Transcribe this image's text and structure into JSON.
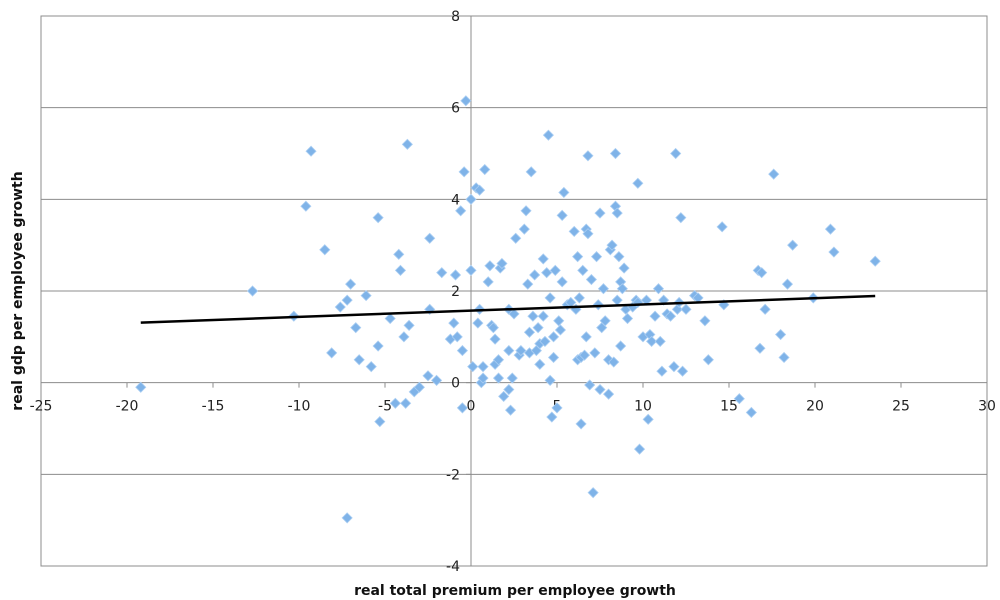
{
  "chart_data": {
    "type": "scatter",
    "xlabel": "real total premium per employee growth",
    "ylabel": "real gdp per employee growth",
    "xlim": [
      -25,
      30
    ],
    "ylim": [
      -4,
      8
    ],
    "x_ticks": [
      -25,
      -20,
      -15,
      -10,
      -5,
      0,
      5,
      10,
      15,
      20,
      25,
      30
    ],
    "y_ticks": [
      -4,
      -2,
      0,
      2,
      4,
      6,
      8
    ],
    "grid": "horizontal major gridlines",
    "legend": "none",
    "colors": {
      "points": "#7fb3e8",
      "trendline": "#000000",
      "gridline": "#8c8c8c",
      "axis": "#8c8c8c"
    },
    "points": [
      [
        -19.2,
        -0.1
      ],
      [
        -12.7,
        2.0
      ],
      [
        -10.3,
        1.45
      ],
      [
        -9.6,
        3.85
      ],
      [
        -9.3,
        5.05
      ],
      [
        -8.5,
        2.9
      ],
      [
        -8.1,
        0.65
      ],
      [
        -7.6,
        1.65
      ],
      [
        -7.2,
        1.8
      ],
      [
        -7.2,
        -2.95
      ],
      [
        -7.0,
        2.15
      ],
      [
        -6.7,
        1.2
      ],
      [
        -6.5,
        0.5
      ],
      [
        -6.1,
        1.9
      ],
      [
        -5.8,
        0.35
      ],
      [
        -5.4,
        0.8
      ],
      [
        -5.4,
        3.6
      ],
      [
        -5.3,
        -0.85
      ],
      [
        -4.7,
        1.4
      ],
      [
        -4.4,
        -0.45
      ],
      [
        -4.2,
        2.8
      ],
      [
        -4.1,
        2.45
      ],
      [
        -3.9,
        1.0
      ],
      [
        -3.8,
        -0.45
      ],
      [
        -3.7,
        5.2
      ],
      [
        -3.6,
        1.25
      ],
      [
        -3.3,
        -0.2
      ],
      [
        -3.0,
        -0.1
      ],
      [
        -2.5,
        0.15
      ],
      [
        -2.4,
        3.15
      ],
      [
        -2.4,
        1.6
      ],
      [
        -2.0,
        0.05
      ],
      [
        -1.7,
        2.4
      ],
      [
        -1.2,
        0.95
      ],
      [
        -1.0,
        1.3
      ],
      [
        -0.9,
        2.35
      ],
      [
        -0.8,
        1.0
      ],
      [
        -0.6,
        3.75
      ],
      [
        -0.5,
        0.7
      ],
      [
        -0.5,
        -0.55
      ],
      [
        -0.4,
        4.6
      ],
      [
        -0.3,
        6.15
      ],
      [
        0.0,
        2.45
      ],
      [
        0.0,
        4.0
      ],
      [
        0.1,
        0.35
      ],
      [
        0.3,
        4.25
      ],
      [
        0.4,
        1.3
      ],
      [
        0.5,
        4.2
      ],
      [
        0.5,
        1.6
      ],
      [
        0.6,
        0.0
      ],
      [
        0.7,
        0.1
      ],
      [
        0.7,
        0.35
      ],
      [
        0.8,
        4.65
      ],
      [
        1.0,
        2.2
      ],
      [
        1.1,
        2.55
      ],
      [
        1.2,
        1.25
      ],
      [
        1.3,
        1.2
      ],
      [
        1.4,
        0.95
      ],
      [
        1.4,
        0.4
      ],
      [
        1.6,
        0.1
      ],
      [
        1.6,
        0.5
      ],
      [
        1.7,
        2.5
      ],
      [
        1.8,
        2.6
      ],
      [
        1.9,
        -0.3
      ],
      [
        2.2,
        1.6
      ],
      [
        2.2,
        0.7
      ],
      [
        2.2,
        -0.15
      ],
      [
        2.3,
        -0.6
      ],
      [
        2.4,
        0.1
      ],
      [
        2.5,
        1.5
      ],
      [
        2.6,
        3.15
      ],
      [
        2.8,
        0.6
      ],
      [
        2.9,
        0.7
      ],
      [
        3.1,
        3.35
      ],
      [
        3.2,
        3.75
      ],
      [
        3.3,
        2.15
      ],
      [
        3.4,
        0.65
      ],
      [
        3.4,
        1.1
      ],
      [
        3.5,
        4.6
      ],
      [
        3.6,
        1.45
      ],
      [
        3.7,
        2.35
      ],
      [
        3.8,
        0.7
      ],
      [
        3.9,
        1.2
      ],
      [
        4.0,
        0.85
      ],
      [
        4.0,
        0.4
      ],
      [
        4.2,
        2.7
      ],
      [
        4.2,
        1.45
      ],
      [
        4.3,
        0.9
      ],
      [
        4.4,
        2.4
      ],
      [
        4.5,
        5.4
      ],
      [
        4.6,
        1.85
      ],
      [
        4.6,
        0.05
      ],
      [
        4.7,
        -0.75
      ],
      [
        4.8,
        1.0
      ],
      [
        4.8,
        0.55
      ],
      [
        4.9,
        2.45
      ],
      [
        5.0,
        -0.55
      ],
      [
        5.1,
        1.35
      ],
      [
        5.2,
        1.15
      ],
      [
        5.3,
        2.2
      ],
      [
        5.3,
        3.65
      ],
      [
        5.4,
        4.15
      ],
      [
        5.6,
        1.7
      ],
      [
        5.8,
        1.75
      ],
      [
        6.0,
        3.3
      ],
      [
        6.1,
        1.6
      ],
      [
        6.2,
        2.75
      ],
      [
        6.2,
        0.5
      ],
      [
        6.3,
        1.85
      ],
      [
        6.4,
        0.55
      ],
      [
        6.4,
        -0.9
      ],
      [
        6.5,
        2.45
      ],
      [
        6.6,
        0.6
      ],
      [
        6.7,
        3.35
      ],
      [
        6.7,
        1.0
      ],
      [
        6.8,
        3.25
      ],
      [
        6.8,
        4.95
      ],
      [
        6.9,
        -0.05
      ],
      [
        7.0,
        2.25
      ],
      [
        7.1,
        -2.4
      ],
      [
        7.2,
        0.65
      ],
      [
        7.3,
        2.75
      ],
      [
        7.4,
        1.7
      ],
      [
        7.5,
        3.7
      ],
      [
        7.5,
        -0.15
      ],
      [
        7.6,
        1.2
      ],
      [
        7.7,
        2.05
      ],
      [
        7.8,
        1.35
      ],
      [
        8.0,
        0.5
      ],
      [
        8.0,
        -0.25
      ],
      [
        8.1,
        2.9
      ],
      [
        8.2,
        3.0
      ],
      [
        8.3,
        0.45
      ],
      [
        8.4,
        3.85
      ],
      [
        8.4,
        5.0
      ],
      [
        8.5,
        1.8
      ],
      [
        8.5,
        3.7
      ],
      [
        8.6,
        2.75
      ],
      [
        8.7,
        0.8
      ],
      [
        8.7,
        2.2
      ],
      [
        8.8,
        2.05
      ],
      [
        8.9,
        2.5
      ],
      [
        9.0,
        1.6
      ],
      [
        9.1,
        1.4
      ],
      [
        9.4,
        1.65
      ],
      [
        9.6,
        1.8
      ],
      [
        9.7,
        1.75
      ],
      [
        9.7,
        4.35
      ],
      [
        9.8,
        -1.45
      ],
      [
        10.0,
        1.0
      ],
      [
        10.2,
        1.8
      ],
      [
        10.3,
        -0.8
      ],
      [
        10.4,
        1.05
      ],
      [
        10.5,
        0.9
      ],
      [
        10.7,
        1.45
      ],
      [
        10.9,
        2.05
      ],
      [
        11.0,
        0.9
      ],
      [
        11.1,
        0.25
      ],
      [
        11.2,
        1.8
      ],
      [
        11.4,
        1.5
      ],
      [
        11.6,
        1.45
      ],
      [
        11.8,
        0.35
      ],
      [
        11.9,
        5.0
      ],
      [
        12.0,
        1.6
      ],
      [
        12.1,
        1.75
      ],
      [
        12.2,
        3.6
      ],
      [
        12.3,
        0.25
      ],
      [
        12.5,
        1.6
      ],
      [
        13.0,
        1.9
      ],
      [
        13.2,
        1.85
      ],
      [
        13.6,
        1.35
      ],
      [
        13.8,
        0.5
      ],
      [
        14.6,
        3.4
      ],
      [
        14.7,
        1.7
      ],
      [
        15.6,
        -0.35
      ],
      [
        16.3,
        -0.65
      ],
      [
        16.7,
        2.45
      ],
      [
        16.8,
        0.75
      ],
      [
        16.9,
        2.4
      ],
      [
        17.1,
        1.6
      ],
      [
        17.6,
        4.55
      ],
      [
        18.0,
        1.05
      ],
      [
        18.2,
        0.55
      ],
      [
        18.4,
        2.15
      ],
      [
        18.7,
        3.0
      ],
      [
        19.9,
        1.85
      ],
      [
        20.9,
        3.35
      ],
      [
        21.1,
        2.85
      ],
      [
        23.5,
        2.65
      ]
    ],
    "trendline": {
      "x": [
        -19.2,
        23.5
      ],
      "y": [
        1.31,
        1.89
      ]
    }
  }
}
